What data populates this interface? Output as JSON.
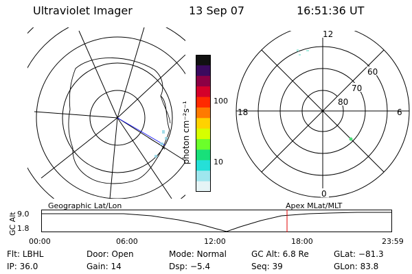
{
  "header": {
    "title": "Ultraviolet Imager",
    "date": "13 Sep 07",
    "time": "16:51:36 UT"
  },
  "colorbar": {
    "label": "photon cm⁻²s⁻¹",
    "ticks": [
      "100",
      "10"
    ],
    "colors": [
      "#111111",
      "#3a0a5e",
      "#8b0044",
      "#d4002a",
      "#ff2a00",
      "#ff7a00",
      "#ffd200",
      "#d6ff00",
      "#6bff2a",
      "#18e07a",
      "#25e0d8",
      "#9fe6ee",
      "#e6f4f6"
    ]
  },
  "polar": {
    "mlt_labels": {
      "top": "12",
      "left": "18",
      "right": "6",
      "bottom": "0"
    },
    "lat_labels": [
      "60",
      "70",
      "80"
    ]
  },
  "timeline": {
    "ylabel": "GC Alt",
    "y_ticks": [
      "9.0",
      "1.8"
    ],
    "left_label": "Geographic Lat/Lon",
    "right_label": "Apex MLat/MLT",
    "time_ticks": [
      "00:00",
      "06:00",
      "12:00",
      "18:00",
      "23:59"
    ],
    "marker_color": "#e00000"
  },
  "status": {
    "row1": [
      {
        "key": "Flt:",
        "value": "LBHL"
      },
      {
        "key": "Door:",
        "value": "Open"
      },
      {
        "key": "Mode:",
        "value": "Normal"
      },
      {
        "key": "GC Alt:",
        "value": "6.8 Re"
      },
      {
        "key": "GLat:",
        "value": "−81.3"
      }
    ],
    "row2": [
      {
        "key": "IP:",
        "value": "36.0"
      },
      {
        "key": "Gain:",
        "value": "14"
      },
      {
        "key": "Dsp:",
        "value": "−5.4"
      },
      {
        "key": "Seq:",
        "value": "39"
      },
      {
        "key": "GLon:",
        "value": "83.8"
      }
    ]
  }
}
